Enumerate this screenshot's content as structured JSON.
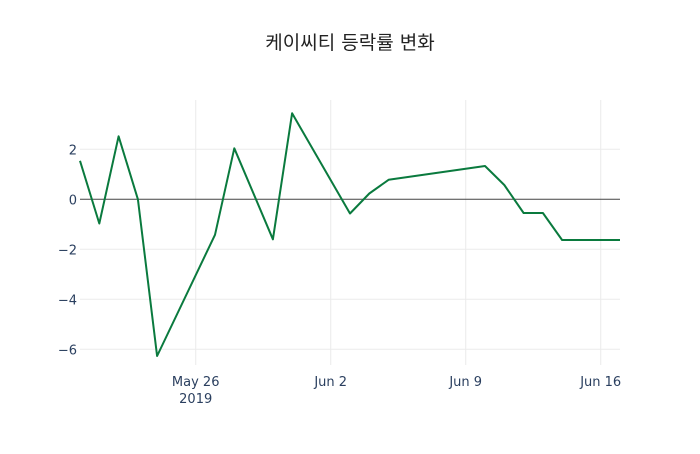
{
  "chart_data": {
    "type": "line",
    "title": "케이씨티 등락률 변화",
    "xlabel": "",
    "ylabel": "",
    "x": [
      "2019-05-20",
      "2019-05-21",
      "2019-05-22",
      "2019-05-23",
      "2019-05-24",
      "2019-05-27",
      "2019-05-28",
      "2019-05-30",
      "2019-05-31",
      "2019-06-03",
      "2019-06-04",
      "2019-06-05",
      "2019-06-10",
      "2019-06-11",
      "2019-06-12",
      "2019-06-13",
      "2019-06-14",
      "2019-06-17"
    ],
    "series": [
      {
        "name": "등락률",
        "color": "#0a7a3e",
        "values": [
          1.54,
          -0.97,
          2.52,
          0.0,
          -6.27,
          -1.42,
          2.04,
          -1.6,
          3.44,
          -0.57,
          0.23,
          0.78,
          1.33,
          0.57,
          -0.55,
          -0.55,
          -1.63,
          -1.63
        ]
      }
    ],
    "xlim": [
      "2019-05-20",
      "2019-06-17"
    ],
    "ylim": [
      -6.63,
      3.97
    ],
    "xticks": [
      {
        "date": "2019-05-26",
        "label": "May 26",
        "sublabel": "2019"
      },
      {
        "date": "2019-06-02",
        "label": "Jun 2"
      },
      {
        "date": "2019-06-09",
        "label": "Jun 9"
      },
      {
        "date": "2019-06-16",
        "label": "Jun 16"
      }
    ],
    "yticks": [
      2,
      0,
      -2,
      -4,
      -6
    ],
    "ytick_labels": [
      "2",
      "0",
      "−2",
      "−4",
      "−6"
    ],
    "grid": true,
    "legend": "none"
  }
}
